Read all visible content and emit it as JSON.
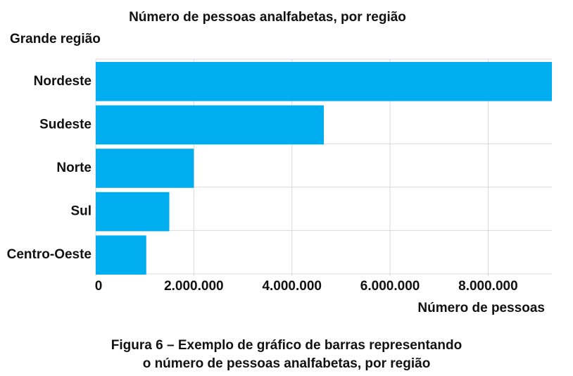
{
  "chart_data": {
    "type": "bar",
    "orientation": "horizontal",
    "title": "Número de pessoas analfabetas, por região",
    "ylabel": "Grande região",
    "xlabel": "Número de pessoas",
    "categories": [
      "Nordeste",
      "Sudeste",
      "Norte",
      "Sul",
      "Centro-Oeste"
    ],
    "values": [
      9300000,
      4650000,
      2000000,
      1500000,
      1030000
    ],
    "xticks": [
      0,
      2000000,
      4000000,
      6000000,
      8000000
    ],
    "xtick_labels": [
      "0",
      "2.000.000",
      "4.000.000",
      "6.000.000",
      "8.000.000"
    ],
    "xlim": [
      0,
      9300000
    ],
    "bar_color": "#00AEEF",
    "grid": true
  },
  "caption": {
    "line1": "Figura 6 – Exemplo de gráfico de barras representando",
    "line2": "o número de pessoas analfabetas, por região"
  }
}
